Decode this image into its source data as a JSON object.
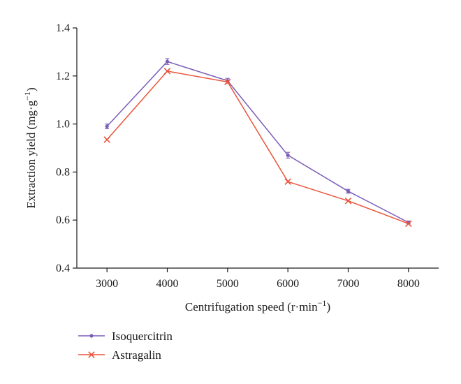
{
  "chart_data": {
    "type": "line",
    "xlabel": "Centrifugation speed (r·min",
    "xlabel_sup": "−1",
    "xlabel_suffix": ")",
    "ylabel": "Extraction yield (mg·g",
    "ylabel_sup": "−1",
    "ylabel_suffix": ")",
    "x": [
      3000,
      4000,
      5000,
      6000,
      7000,
      8000
    ],
    "x_tick_labels": [
      "3000",
      "4000",
      "5000",
      "6000",
      "7000",
      "8000"
    ],
    "y_ticks": [
      0.4,
      0.6,
      0.8,
      1.0,
      1.2,
      1.4
    ],
    "y_tick_labels": [
      "0.4",
      "0.6",
      "0.8",
      "1.0",
      "1.2",
      "1.4"
    ],
    "xlim": [
      2500,
      8500
    ],
    "ylim": [
      0.4,
      1.4
    ],
    "grid": false,
    "legend_position": "bottom-left",
    "series": [
      {
        "name": "Isoquercitrin",
        "values": [
          0.99,
          1.26,
          1.18,
          0.87,
          0.72,
          0.59
        ],
        "errors": [
          0.01,
          0.012,
          0.01,
          0.012,
          0.008,
          0.006
        ],
        "color": "#7b5cb8",
        "marker": "dot"
      },
      {
        "name": "Astragalin",
        "values": [
          0.935,
          1.22,
          1.175,
          0.76,
          0.68,
          0.585
        ],
        "errors": [
          0,
          0,
          0,
          0,
          0,
          0
        ],
        "color": "#e8553a",
        "marker": "x"
      }
    ]
  }
}
